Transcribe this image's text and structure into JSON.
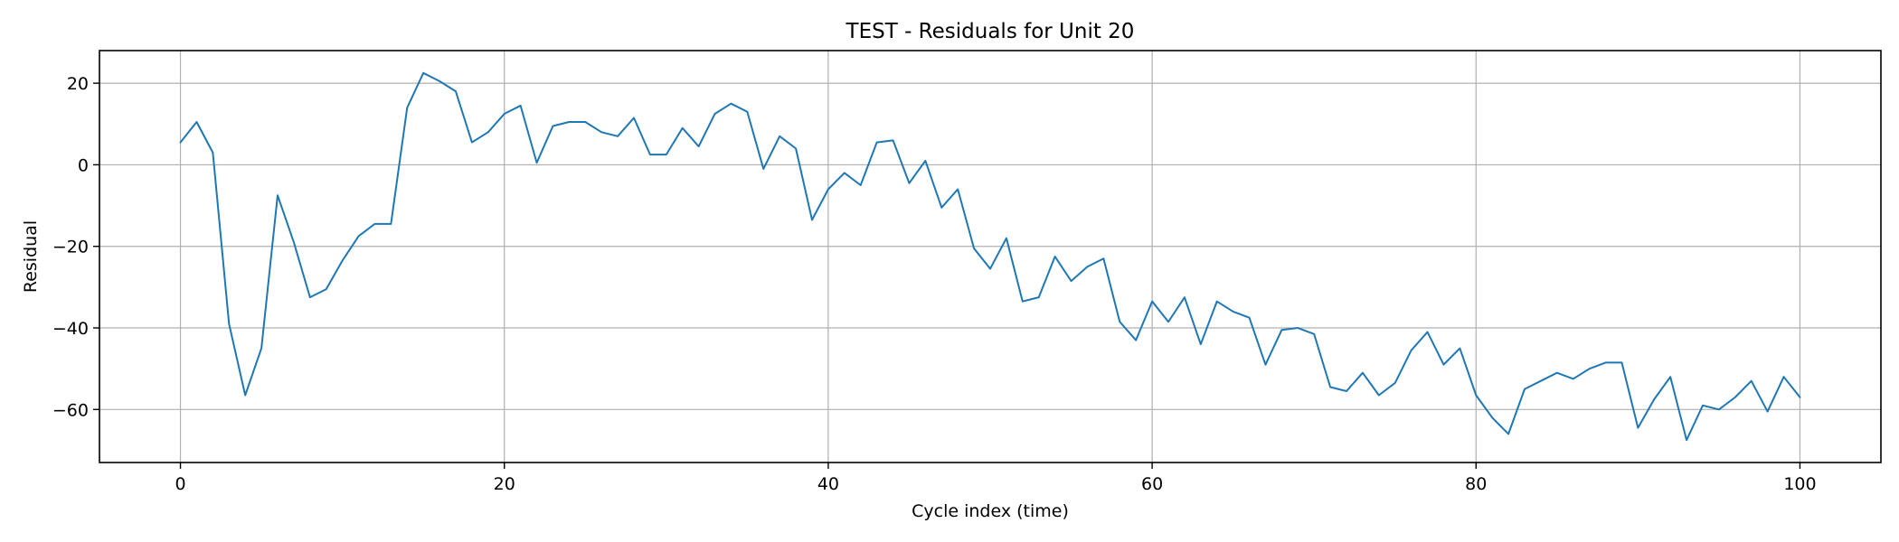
{
  "colors": {
    "line": "#1f77b4",
    "grid": "#b0b0b0",
    "axis": "#000000",
    "background": "#ffffff"
  },
  "chart_data": {
    "type": "line",
    "title": "TEST - Residuals for Unit 20",
    "xlabel": "Cycle index (time)",
    "ylabel": "Residual",
    "grid": true,
    "xlim": [
      -5,
      105
    ],
    "ylim": [
      -73,
      28
    ],
    "xticks": [
      0,
      20,
      40,
      60,
      80,
      100
    ],
    "yticks": [
      -60,
      -40,
      -20,
      0,
      20
    ],
    "xtick_labels": [
      "0",
      "20",
      "40",
      "60",
      "80",
      "100"
    ],
    "ytick_labels": [
      "−60",
      "−40",
      "−20",
      "0",
      "20"
    ],
    "series": [
      {
        "name": "Residual",
        "x": [
          0,
          1,
          2,
          3,
          4,
          5,
          6,
          7,
          8,
          9,
          10,
          11,
          12,
          13,
          14,
          15,
          16,
          17,
          18,
          19,
          20,
          21,
          22,
          23,
          24,
          25,
          26,
          27,
          28,
          29,
          30,
          31,
          32,
          33,
          34,
          35,
          36,
          37,
          38,
          39,
          40,
          41,
          42,
          43,
          44,
          45,
          46,
          47,
          48,
          49,
          50,
          51,
          52,
          53,
          54,
          55,
          56,
          57,
          58,
          59,
          60,
          61,
          62,
          63,
          64,
          65,
          66,
          67,
          68,
          69,
          70,
          71,
          72,
          73,
          74,
          75,
          76,
          77,
          78,
          79,
          80,
          81,
          82,
          83,
          84,
          85,
          86,
          87,
          88,
          89,
          90,
          91,
          92,
          93,
          94,
          95,
          96,
          97,
          98,
          99,
          100
        ],
        "values": [
          5.5,
          10.5,
          3,
          -39,
          -56.5,
          -45,
          -7.5,
          -19,
          -32.5,
          -30.5,
          -23.5,
          -17.5,
          -14.5,
          -14.5,
          14,
          22.5,
          20.5,
          18,
          5.5,
          8,
          12.5,
          14.5,
          0.5,
          9.5,
          10.5,
          10.5,
          8,
          7,
          11.5,
          2.5,
          2.5,
          9,
          4.5,
          12.5,
          15,
          13,
          -1,
          7,
          4,
          -13.5,
          -6,
          -2,
          -5,
          5.5,
          6,
          -4.5,
          1,
          -10.5,
          -6,
          -20.5,
          -25.5,
          -18,
          -33.5,
          -32.5,
          -22.5,
          -28.5,
          -25,
          -23,
          -38.5,
          -43,
          -33.5,
          -38.5,
          -32.5,
          -44,
          -33.5,
          -36,
          -37.5,
          -49,
          -40.5,
          -40,
          -41.5,
          -54.5,
          -55.5,
          -51,
          -56.5,
          -53.5,
          -45.5,
          -41,
          -49,
          -45,
          -56.5,
          -62,
          -66,
          -55,
          -53,
          -51,
          -52.5,
          -50,
          -48.5,
          -48.5,
          -64.5,
          -57.5,
          -52,
          -67.5,
          -59,
          -60,
          -57,
          -53,
          -60.5,
          -52,
          -57
        ]
      }
    ]
  }
}
